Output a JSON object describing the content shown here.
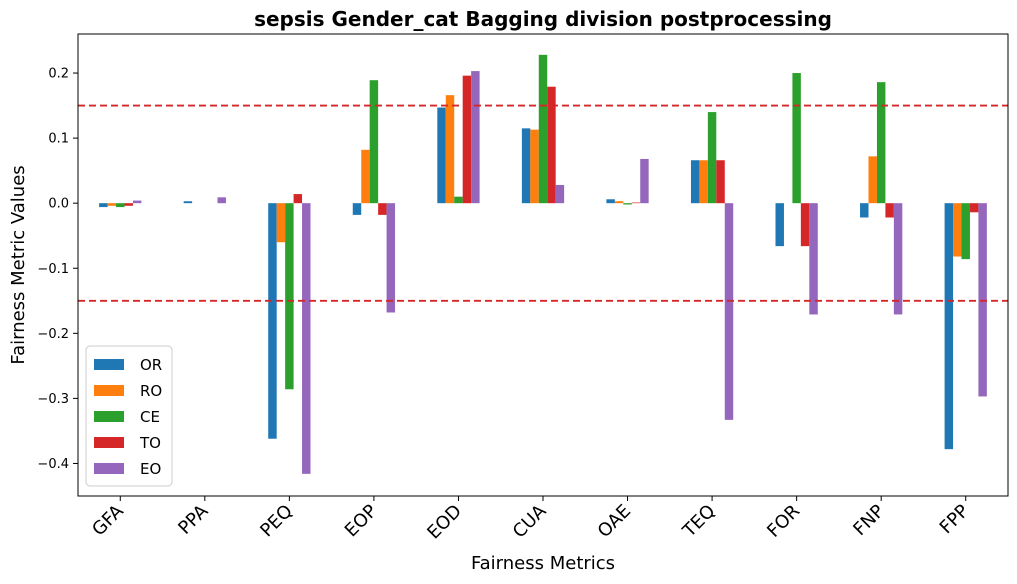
{
  "chart_data": {
    "type": "bar",
    "title": "sepsis Gender_cat Bagging division postprocessing",
    "xlabel": "Fairness Metrics",
    "ylabel": "Fairness Metric Values",
    "categories": [
      "GFA",
      "PPA",
      "PEQ",
      "EOP",
      "EOD",
      "CUA",
      "OAE",
      "TEQ",
      "FOR",
      "FNP",
      "FPP"
    ],
    "ylim": [
      -0.45,
      0.26
    ],
    "yticks": [
      -0.4,
      -0.3,
      -0.2,
      -0.1,
      0.0,
      0.1,
      0.2
    ],
    "ytick_labels": [
      "−0.4",
      "−0.3",
      "−0.2",
      "−0.1",
      "0.0",
      "0.1",
      "0.2"
    ],
    "thresholds": [
      0.15,
      -0.15
    ],
    "threshold_color": "#d62728",
    "legend_position": "lower-left",
    "series": [
      {
        "name": "OR",
        "color": "#1f77b4",
        "values": [
          -0.006,
          0.003,
          -0.362,
          -0.018,
          0.147,
          0.115,
          0.006,
          0.066,
          -0.066,
          -0.022,
          -0.378
        ]
      },
      {
        "name": "RO",
        "color": "#ff7f0e",
        "values": [
          -0.004,
          0.0,
          -0.06,
          0.082,
          0.166,
          0.113,
          0.003,
          0.066,
          0.0,
          0.072,
          -0.082
        ]
      },
      {
        "name": "CE",
        "color": "#2ca02c",
        "values": [
          -0.006,
          0.0,
          -0.286,
          0.189,
          0.01,
          0.228,
          -0.002,
          0.14,
          0.2,
          0.186,
          -0.086
        ]
      },
      {
        "name": "TO",
        "color": "#d62728",
        "values": [
          -0.004,
          0.0,
          0.014,
          -0.018,
          0.196,
          0.179,
          0.001,
          0.066,
          -0.066,
          -0.022,
          -0.014
        ]
      },
      {
        "name": "EO",
        "color": "#9467bd",
        "values": [
          0.004,
          0.009,
          -0.416,
          -0.168,
          0.203,
          0.028,
          0.068,
          -0.333,
          -0.171,
          -0.171,
          -0.297
        ]
      }
    ]
  }
}
